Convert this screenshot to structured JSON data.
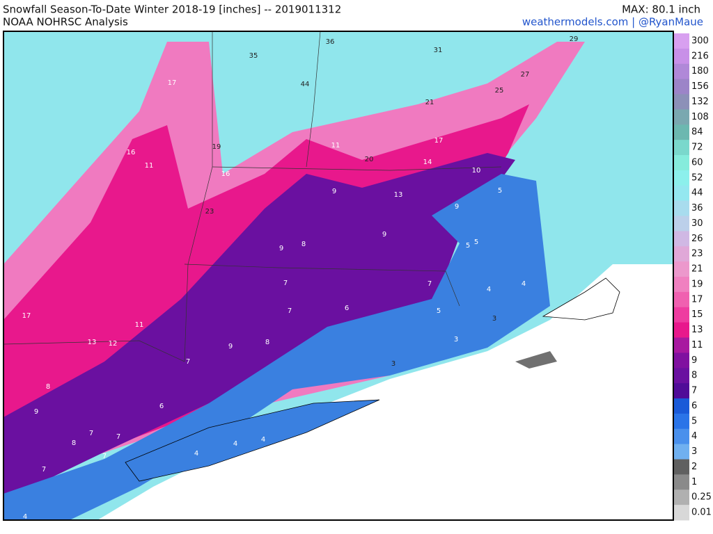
{
  "header": {
    "title": "Snowfall Season-To-Date Winter 2018-19 [inches] -- 2019011312",
    "source": "NOAA NOHRSC Analysis",
    "max": "MAX: 80.1 inch",
    "credit": "weathermodels.com | @RyanMaue"
  },
  "colorbar": {
    "levels": [
      {
        "label": "300",
        "color": "#d8a0f0"
      },
      {
        "label": "216",
        "color": "#c890e8"
      },
      {
        "label": "180",
        "color": "#b088d8"
      },
      {
        "label": "156",
        "color": "#9c84c8"
      },
      {
        "label": "132",
        "color": "#8c90b8"
      },
      {
        "label": "108",
        "color": "#7aa8b0"
      },
      {
        "label": "84",
        "color": "#6cb8b0"
      },
      {
        "label": "72",
        "color": "#7ad8cc"
      },
      {
        "label": "60",
        "color": "#86ecdc"
      },
      {
        "label": "52",
        "color": "#8cf0ec"
      },
      {
        "label": "44",
        "color": "#94e8f0"
      },
      {
        "label": "36",
        "color": "#a8dcee"
      },
      {
        "label": "30",
        "color": "#bcd0ea"
      },
      {
        "label": "26",
        "color": "#d0b8e4"
      },
      {
        "label": "23",
        "color": "#e0a8d8"
      },
      {
        "label": "21",
        "color": "#ec98cc"
      },
      {
        "label": "19",
        "color": "#f080c0"
      },
      {
        "label": "17",
        "color": "#f060b0"
      },
      {
        "label": "15",
        "color": "#ee3ca0"
      },
      {
        "label": "13",
        "color": "#e8188c"
      },
      {
        "label": "11",
        "color": "#a818a0"
      },
      {
        "label": "9",
        "color": "#8010a0"
      },
      {
        "label": "8",
        "color": "#6a10a0"
      },
      {
        "label": "7",
        "color": "#500c98"
      },
      {
        "label": "6",
        "color": "#1a5ad8"
      },
      {
        "label": "5",
        "color": "#2a74e8"
      },
      {
        "label": "4",
        "color": "#4a90ec"
      },
      {
        "label": "3",
        "color": "#70b0f0"
      },
      {
        "label": "2",
        "color": "#606060"
      },
      {
        "label": "1",
        "color": "#8a8a8a"
      },
      {
        "label": "0.25",
        "color": "#b0b0b0"
      },
      {
        "label": "0.01",
        "color": "#d8d8d8"
      }
    ]
  },
  "map": {
    "labels": [
      "35",
      "36",
      "31",
      "29",
      "27",
      "44",
      "25",
      "21",
      "17",
      "16",
      "11",
      "19",
      "11",
      "20",
      "17",
      "14",
      "10",
      "16",
      "13",
      "9",
      "5",
      "9",
      "23",
      "9",
      "8",
      "9",
      "5",
      "5",
      "7",
      "7",
      "4",
      "4",
      "7",
      "6",
      "5",
      "3",
      "3",
      "17",
      "11",
      "13",
      "12",
      "9",
      "8",
      "7",
      "3",
      "8",
      "6",
      "9",
      "7",
      "7",
      "8",
      "4",
      "4",
      "4",
      "7",
      "7",
      "4"
    ]
  }
}
